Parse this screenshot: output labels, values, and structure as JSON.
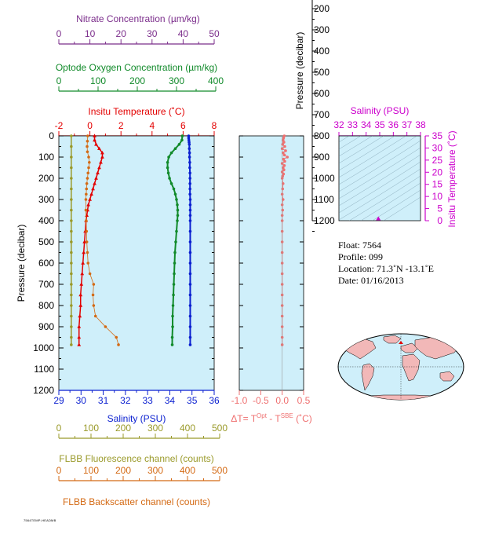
{
  "colors": {
    "panel_bg": "#cfeffa",
    "nitrate": "#7b2d8b",
    "oxygen": "#118a2a",
    "temperature": "#e30000",
    "salinity": "#0a1fd0",
    "fluorescence": "#9a9a2a",
    "backscatter": "#d46a14",
    "delta_t": "#ef7070",
    "ts_axis": "#cc00cc",
    "land": "#f2b8b8"
  },
  "main_panel": {
    "y_axis_label": "Pressure (decibar)",
    "pressure_ticks": [
      "0",
      "100",
      "200",
      "300",
      "400",
      "500",
      "600",
      "700",
      "800",
      "900",
      "1000",
      "1100",
      "1200"
    ],
    "nitrate_axis": {
      "label": "Nitrate Concentration (µm/kg)",
      "ticks": [
        "0",
        "10",
        "20",
        "30",
        "40",
        "50"
      ]
    },
    "oxygen_axis": {
      "label": "Optode Oxygen Concentration (µm/kg)",
      "ticks": [
        "0",
        "100",
        "200",
        "300",
        "400"
      ]
    },
    "temperature_axis": {
      "label": "Insitu Temperature (˚C)",
      "ticks": [
        "-2",
        "0",
        "2",
        "4",
        "6",
        "8"
      ]
    },
    "salinity_axis": {
      "label": "Salinity (PSU)",
      "ticks": [
        "29",
        "30",
        "31",
        "32",
        "33",
        "34",
        "35",
        "36"
      ]
    },
    "fluorescence_axis": {
      "label": "FLBB Fluorescence channel (counts)",
      "ticks": [
        "0",
        "100",
        "200",
        "300",
        "400",
        "500"
      ]
    },
    "backscatter_axis": {
      "label": "FLBB Backscatter channel (counts)",
      "ticks": [
        "0",
        "100",
        "200",
        "300",
        "400",
        "500"
      ]
    }
  },
  "delta_panel": {
    "x_axis_label": "ΔT= T",
    "label_sup1": "Opt",
    "label_mid": " - T",
    "label_sup2": "SBE",
    "label_unit": " (˚C)",
    "ticks": [
      "-1.0",
      "-0.5",
      "0.0",
      "0.5"
    ]
  },
  "ts_panel": {
    "y_left_label": "Pressure (decibar)",
    "y_left_ticks": [
      "200",
      "300",
      "400",
      "500",
      "600",
      "700",
      "800",
      "900",
      "1000",
      "1100",
      "1200"
    ],
    "x_axis_label": "Salinity (PSU)",
    "x_ticks": [
      "32",
      "33",
      "34",
      "35",
      "36",
      "37",
      "38"
    ],
    "y_right_label": "Insitu Temperature (˚C)",
    "y_right_ticks": [
      "0",
      "5",
      "10",
      "15",
      "20",
      "25",
      "30",
      "35"
    ]
  },
  "info": {
    "float": "Float:  7564",
    "profile": "Profile:  099",
    "location": "Location:  71.3˚N  -13.1˚E",
    "date": "Date:  01/16/2013"
  },
  "footer_id": "7564TEMP-HEADMB",
  "chart_data": {
    "type": "scatter",
    "y_variable": "Pressure (decibar)",
    "y_range": [
      1200,
      0
    ],
    "series": [
      {
        "name": "Salinity (PSU)",
        "x_range": [
          29,
          36
        ],
        "points": [
          [
            34.85,
            0
          ],
          [
            34.85,
            10
          ],
          [
            34.86,
            20
          ],
          [
            34.87,
            30
          ],
          [
            34.88,
            40
          ],
          [
            34.88,
            60
          ],
          [
            34.89,
            80
          ],
          [
            34.89,
            100
          ],
          [
            34.9,
            125
          ],
          [
            34.9,
            150
          ],
          [
            34.91,
            175
          ],
          [
            34.91,
            200
          ],
          [
            34.91,
            225
          ],
          [
            34.91,
            250
          ],
          [
            34.91,
            275
          ],
          [
            34.92,
            300
          ],
          [
            34.92,
            325
          ],
          [
            34.92,
            350
          ],
          [
            34.92,
            375
          ],
          [
            34.92,
            400
          ],
          [
            34.92,
            450
          ],
          [
            34.92,
            500
          ],
          [
            34.92,
            550
          ],
          [
            34.92,
            600
          ],
          [
            34.92,
            650
          ],
          [
            34.92,
            700
          ],
          [
            34.92,
            750
          ],
          [
            34.92,
            800
          ],
          [
            34.92,
            850
          ],
          [
            34.92,
            900
          ],
          [
            34.92,
            950
          ],
          [
            34.92,
            985
          ]
        ]
      },
      {
        "name": "Optode Oxygen Concentration (µm/kg)",
        "x_range": [
          0,
          400
        ],
        "points": [
          [
            318,
            0
          ],
          [
            317,
            20
          ],
          [
            310,
            40
          ],
          [
            300,
            60
          ],
          [
            290,
            80
          ],
          [
            283,
            100
          ],
          [
            280,
            125
          ],
          [
            280,
            150
          ],
          [
            282,
            175
          ],
          [
            285,
            200
          ],
          [
            290,
            225
          ],
          [
            296,
            250
          ],
          [
            300,
            275
          ],
          [
            303,
            300
          ],
          [
            305,
            325
          ],
          [
            306,
            350
          ],
          [
            306,
            375
          ],
          [
            305,
            400
          ],
          [
            303,
            450
          ],
          [
            301,
            500
          ],
          [
            299,
            550
          ],
          [
            298,
            600
          ],
          [
            297,
            650
          ],
          [
            296,
            700
          ],
          [
            295,
            750
          ],
          [
            294,
            800
          ],
          [
            293,
            850
          ],
          [
            293,
            900
          ],
          [
            292,
            950
          ],
          [
            292,
            985
          ]
        ]
      },
      {
        "name": "Insitu Temperature (˚C)",
        "x_range": [
          -2,
          8
        ],
        "points": [
          [
            0.3,
            0
          ],
          [
            0.3,
            20
          ],
          [
            0.4,
            40
          ],
          [
            0.6,
            60
          ],
          [
            0.8,
            80
          ],
          [
            0.8,
            100
          ],
          [
            0.7,
            125
          ],
          [
            0.6,
            150
          ],
          [
            0.5,
            175
          ],
          [
            0.4,
            200
          ],
          [
            0.3,
            225
          ],
          [
            0.2,
            250
          ],
          [
            0.1,
            275
          ],
          [
            0.0,
            300
          ],
          [
            -0.1,
            325
          ],
          [
            -0.15,
            350
          ],
          [
            -0.2,
            375
          ],
          [
            -0.25,
            400
          ],
          [
            -0.3,
            450
          ],
          [
            -0.35,
            500
          ],
          [
            -0.4,
            550
          ],
          [
            -0.45,
            600
          ],
          [
            -0.5,
            650
          ],
          [
            -0.55,
            700
          ],
          [
            -0.6,
            750
          ],
          [
            -0.6,
            800
          ],
          [
            -0.65,
            850
          ],
          [
            -0.7,
            900
          ],
          [
            -0.7,
            950
          ],
          [
            -0.7,
            985
          ]
        ]
      },
      {
        "name": "FLBB Fluorescence channel (counts)",
        "x_range": [
          0,
          500
        ],
        "points": [
          [
            40,
            0
          ],
          [
            40,
            50
          ],
          [
            40,
            100
          ],
          [
            40,
            150
          ],
          [
            40,
            200
          ],
          [
            40,
            250
          ],
          [
            40,
            300
          ],
          [
            40,
            350
          ],
          [
            40,
            400
          ],
          [
            40,
            450
          ],
          [
            40,
            500
          ],
          [
            40,
            550
          ],
          [
            40,
            600
          ],
          [
            40,
            650
          ],
          [
            40,
            700
          ],
          [
            40,
            750
          ],
          [
            40,
            800
          ],
          [
            40,
            850
          ],
          [
            40,
            900
          ],
          [
            40,
            950
          ],
          [
            40,
            985
          ]
        ]
      },
      {
        "name": "FLBB Backscatter channel (counts)",
        "x_range": [
          0,
          500
        ],
        "points": [
          [
            93,
            0
          ],
          [
            92,
            25
          ],
          [
            91,
            50
          ],
          [
            92,
            75
          ],
          [
            96,
            100
          ],
          [
            98,
            125
          ],
          [
            96,
            150
          ],
          [
            94,
            175
          ],
          [
            92,
            200
          ],
          [
            90,
            225
          ],
          [
            89,
            250
          ],
          [
            88,
            275
          ],
          [
            87,
            300
          ],
          [
            87,
            350
          ],
          [
            88,
            400
          ],
          [
            89,
            450
          ],
          [
            90,
            500
          ],
          [
            92,
            550
          ],
          [
            94,
            600
          ],
          [
            100,
            650
          ],
          [
            112,
            700
          ],
          [
            110,
            750
          ],
          [
            112,
            800
          ],
          [
            118,
            850
          ],
          [
            150,
            900
          ],
          [
            185,
            950
          ],
          [
            192,
            985
          ]
        ]
      },
      {
        "name": "ΔT (˚C)",
        "x_range": [
          -1.0,
          0.5
        ],
        "points": [
          [
            0.05,
            0
          ],
          [
            0.03,
            10
          ],
          [
            0.02,
            20
          ],
          [
            0.04,
            30
          ],
          [
            0.01,
            40
          ],
          [
            0.06,
            50
          ],
          [
            0.0,
            60
          ],
          [
            0.08,
            70
          ],
          [
            0.02,
            80
          ],
          [
            0.05,
            90
          ],
          [
            0.12,
            100
          ],
          [
            0.03,
            110
          ],
          [
            0.06,
            120
          ],
          [
            0.0,
            130
          ],
          [
            0.05,
            140
          ],
          [
            0.02,
            150
          ],
          [
            0.04,
            160
          ],
          [
            0.0,
            170
          ],
          [
            0.03,
            180
          ],
          [
            0.01,
            190
          ],
          [
            0.0,
            200
          ],
          [
            0.02,
            225
          ],
          [
            0.01,
            250
          ],
          [
            0.0,
            275
          ],
          [
            0.02,
            300
          ],
          [
            0.0,
            325
          ],
          [
            0.01,
            350
          ],
          [
            0.0,
            375
          ],
          [
            0.0,
            400
          ],
          [
            0.0,
            450
          ],
          [
            0.0,
            500
          ],
          [
            0.0,
            550
          ],
          [
            0.0,
            600
          ],
          [
            0.0,
            650
          ],
          [
            0.0,
            700
          ],
          [
            0.0,
            750
          ],
          [
            0.0,
            800
          ],
          [
            0.0,
            850
          ],
          [
            0.0,
            900
          ],
          [
            0.0,
            950
          ],
          [
            0.0,
            985
          ]
        ]
      }
    ],
    "nitrate": {
      "x_range": [
        0,
        50
      ],
      "points": []
    },
    "ts_diagram": {
      "x_range": [
        32,
        38
      ],
      "y_range": [
        0,
        35
      ],
      "points": [
        [
          34.9,
          0.5
        ]
      ]
    }
  }
}
